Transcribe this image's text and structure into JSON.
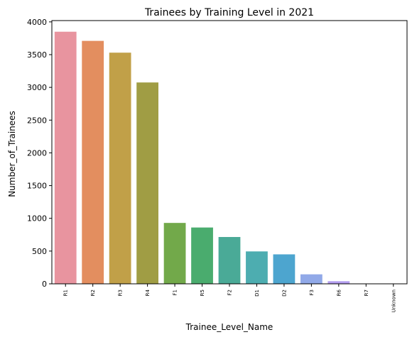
{
  "chart_data": {
    "type": "bar",
    "title": "Trainees by Training Level in 2021",
    "xlabel": "Trainee_Level_Name",
    "ylabel": "Number_of_Trainees",
    "categories": [
      "R1",
      "R2",
      "R3",
      "R4",
      "F1",
      "R5",
      "F2",
      "D1",
      "D2",
      "F3",
      "R6",
      "R7",
      "Unknown"
    ],
    "values": [
      3850,
      3710,
      3530,
      3075,
      930,
      860,
      715,
      495,
      450,
      145,
      40,
      3,
      1
    ],
    "colors": [
      "#e8949f",
      "#e38e5f",
      "#c1a048",
      "#a09d44",
      "#72a94a",
      "#4aac6e",
      "#4aaa97",
      "#4dadb0",
      "#4da5cf",
      "#91a9e8",
      "#b49ef0",
      "#d691ea",
      "#e990cf"
    ],
    "ylim": [
      0,
      4000
    ],
    "yticks": [
      0,
      500,
      1000,
      1500,
      2000,
      2500,
      3000,
      3500,
      4000
    ],
    "grid": false,
    "legend": false
  }
}
